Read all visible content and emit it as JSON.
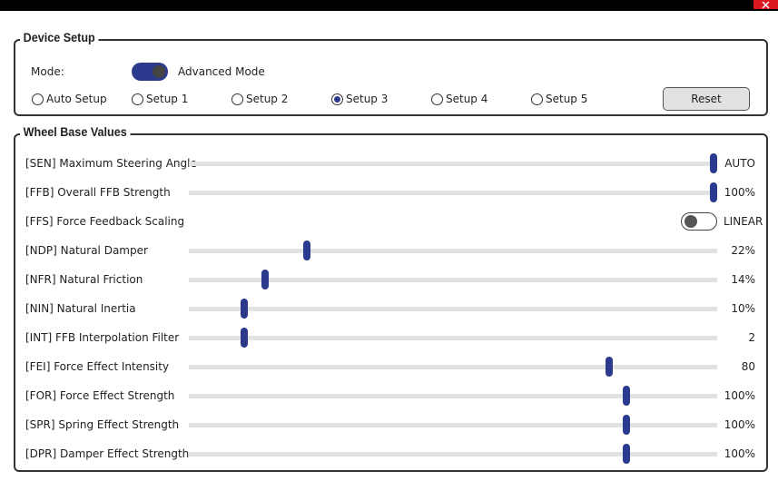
{
  "device_setup": {
    "title": "Device Setup",
    "mode_label": "Mode:",
    "mode_value": "Advanced Mode",
    "setups": [
      "Auto Setup",
      "Setup 1",
      "Setup 2",
      "Setup 3",
      "Setup 4",
      "Setup 5"
    ],
    "selected": "Setup 3",
    "reset": "Reset"
  },
  "wheel_base": {
    "title": "Wheel Base Values",
    "rows": [
      {
        "label": "[SEN] Maximum Steering Angle",
        "value": "AUTO"
      },
      {
        "label": "[FFB] Overall FFB Strength",
        "value": "100%"
      },
      {
        "label": "[FFS] Force Feedback Scaling",
        "value": "LINEAR"
      },
      {
        "label": "[NDP] Natural Damper",
        "value": "22%"
      },
      {
        "label": "[NFR] Natural Friction",
        "value": "14%"
      },
      {
        "label": "[NIN] Natural Inertia",
        "value": "10%"
      },
      {
        "label": "[INT] FFB Interpolation Filter",
        "value": "2"
      },
      {
        "label": "[FEI] Force Effect Intensity",
        "value": "80"
      },
      {
        "label": "[FOR] Force Effect Strength",
        "value": "100%"
      },
      {
        "label": "[SPR] Spring Effect Strength",
        "value": "100%"
      },
      {
        "label": "[DPR] Damper Effect Strength",
        "value": "100%"
      }
    ]
  }
}
